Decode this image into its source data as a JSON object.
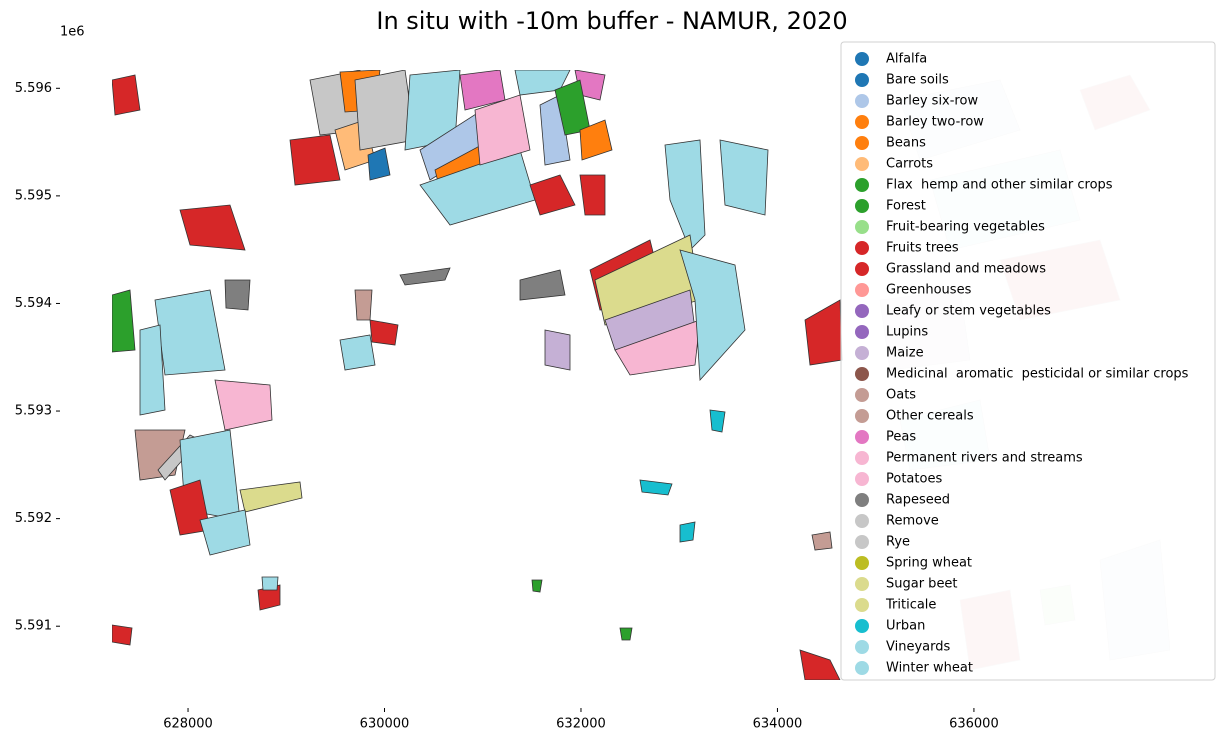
{
  "chart_data": {
    "type": "map",
    "title": "In situ with -10m buffer - NAMUR, 2020",
    "y_offset_label": "1e6",
    "xlim": [
      627226,
      637996
    ],
    "ylim": [
      5590500,
      5596170
    ],
    "xticks": [
      628000,
      630000,
      632000,
      634000,
      636000
    ],
    "yticks": [
      {
        "value": 5591000,
        "label": "5.591"
      },
      {
        "value": 5592000,
        "label": "5.592"
      },
      {
        "value": 5593000,
        "label": "5.593"
      },
      {
        "value": 5594000,
        "label": "5.594"
      },
      {
        "value": 5595000,
        "label": "5.595"
      },
      {
        "value": 5596000,
        "label": "5.596"
      }
    ],
    "legend": [
      {
        "name": "Alfalfa",
        "color": "#1f77b4"
      },
      {
        "name": "Bare soils",
        "color": "#1f77b4"
      },
      {
        "name": "Barley six-row",
        "color": "#aec7e8"
      },
      {
        "name": "Barley two-row",
        "color": "#ff7f0e"
      },
      {
        "name": "Beans",
        "color": "#ff7f0e"
      },
      {
        "name": "Carrots",
        "color": "#ffbb78"
      },
      {
        "name": "Flax  hemp and other similar crops",
        "color": "#2ca02c"
      },
      {
        "name": "Forest",
        "color": "#2ca02c"
      },
      {
        "name": "Fruit-bearing vegetables",
        "color": "#98df8a"
      },
      {
        "name": "Fruits trees",
        "color": "#d62728"
      },
      {
        "name": "Grassland and meadows",
        "color": "#d62728"
      },
      {
        "name": "Greenhouses",
        "color": "#ff9896"
      },
      {
        "name": "Leafy or stem vegetables",
        "color": "#9467bd"
      },
      {
        "name": "Lupins",
        "color": "#9467bd"
      },
      {
        "name": "Maize",
        "color": "#c5b0d5"
      },
      {
        "name": "Medicinal  aromatic  pesticidal or similar crops",
        "color": "#8c564b"
      },
      {
        "name": "Oats",
        "color": "#c49c94"
      },
      {
        "name": "Other cereals",
        "color": "#c49c94"
      },
      {
        "name": "Peas",
        "color": "#e377c2"
      },
      {
        "name": "Permanent rivers and streams",
        "color": "#f7b6d2"
      },
      {
        "name": "Potatoes",
        "color": "#f7b6d2"
      },
      {
        "name": "Rapeseed",
        "color": "#7f7f7f"
      },
      {
        "name": "Remove",
        "color": "#c7c7c7"
      },
      {
        "name": "Rye",
        "color": "#c7c7c7"
      },
      {
        "name": "Spring wheat",
        "color": "#bcbd22"
      },
      {
        "name": "Sugar beet",
        "color": "#dbdb8d"
      },
      {
        "name": "Triticale",
        "color": "#dbdb8d"
      },
      {
        "name": "Urban",
        "color": "#17becf"
      },
      {
        "name": "Vineyards",
        "color": "#9edae5"
      },
      {
        "name": "Winter wheat",
        "color": "#9edae5"
      }
    ]
  }
}
